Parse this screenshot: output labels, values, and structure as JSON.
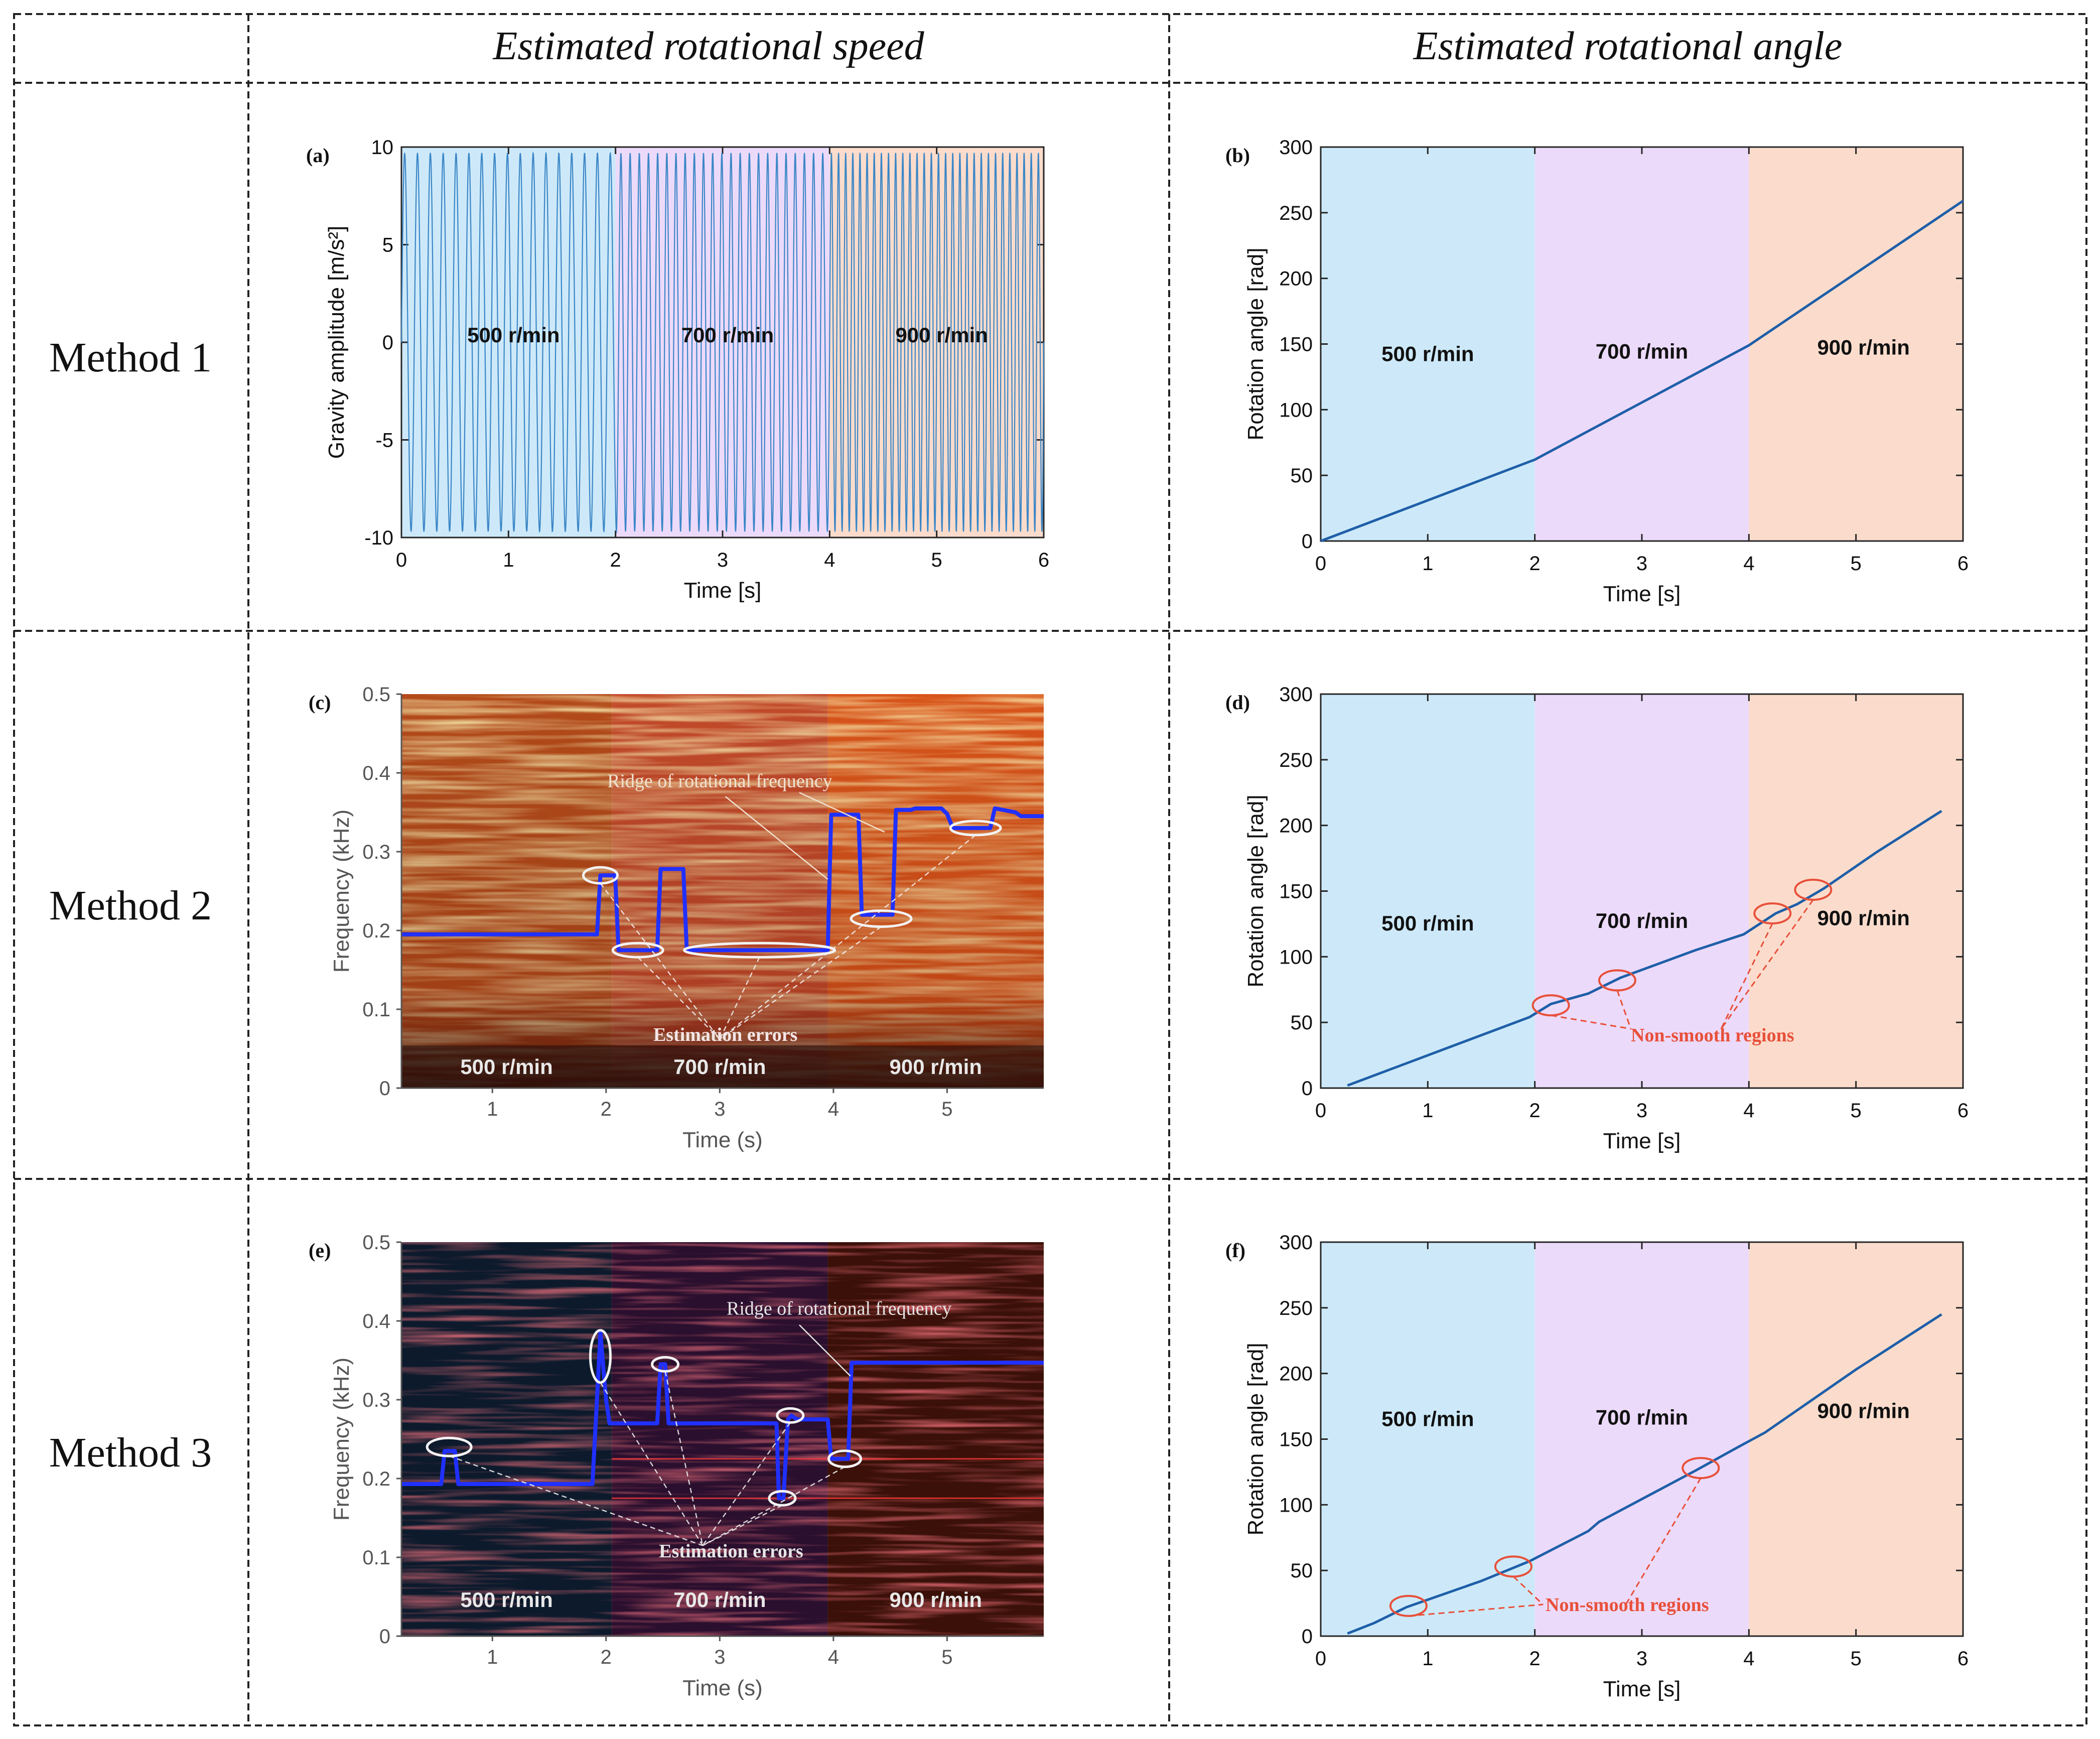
{
  "table": {
    "headers": [
      "",
      "Estimated rotational speed",
      "Estimated rotational angle"
    ],
    "rows": [
      "Method 1",
      "Method 2",
      "Method 3"
    ]
  },
  "colors": {
    "band_500": "#cde9f9",
    "band_700": "#ecdafa",
    "band_900": "#fbdccc",
    "line": "#1f5fa8",
    "ridge": "#2030ff",
    "annotation": "#e8503a",
    "ellipse_white": "#f2f2f2"
  },
  "chart_data": [
    {
      "id": "a",
      "panel_label": "(a)",
      "type": "line",
      "xlabel": "Time [s]",
      "ylabel": "Gravity amplitude [m/s²]",
      "xlim": [
        0,
        6
      ],
      "ylim": [
        -10,
        10
      ],
      "xticks": [
        "0",
        "1",
        "2",
        "3",
        "4",
        "5",
        "6"
      ],
      "yticks": [
        "-10",
        "-5",
        "0",
        "5",
        "10"
      ],
      "bands": [
        {
          "from": 0,
          "to": 2,
          "label": "500 r/min"
        },
        {
          "from": 2,
          "to": 4,
          "label": "700 r/min"
        },
        {
          "from": 4,
          "to": 6,
          "label": "900 r/min"
        }
      ],
      "series": [
        {
          "segments": [
            {
              "t0": 0,
              "t1": 2,
              "freq_hz": 8.33,
              "amplitude": 9.7
            },
            {
              "t0": 2,
              "t1": 4,
              "freq_hz": 11.67,
              "amplitude": 9.7
            },
            {
              "t0": 4,
              "t1": 6,
              "freq_hz": 15.0,
              "amplitude": 9.7
            }
          ]
        }
      ]
    },
    {
      "id": "b",
      "panel_label": "(b)",
      "type": "line",
      "xlabel": "Time [s]",
      "ylabel": "Rotation angle [rad]",
      "xlim": [
        0,
        6
      ],
      "ylim": [
        0,
        300
      ],
      "xticks": [
        "0",
        "1",
        "2",
        "3",
        "4",
        "5",
        "6"
      ],
      "yticks": [
        "0",
        "50",
        "100",
        "150",
        "200",
        "250",
        "300"
      ],
      "bands": [
        {
          "from": 0,
          "to": 2,
          "label": "500 r/min"
        },
        {
          "from": 2,
          "to": 4,
          "label": "700 r/min"
        },
        {
          "from": 4,
          "to": 6,
          "label": "900 r/min"
        }
      ],
      "series": [
        {
          "x": [
            0,
            2,
            4,
            6
          ],
          "y": [
            0,
            62,
            149,
            259
          ]
        }
      ]
    },
    {
      "id": "c",
      "panel_label": "(c)",
      "type": "heatmap",
      "xlabel": "Time (s)",
      "ylabel": "Frequency (kHz)",
      "xlim": [
        0.2,
        5.85
      ],
      "ylim": [
        0,
        0.5
      ],
      "xticks": [
        "1",
        "2",
        "3",
        "4",
        "5"
      ],
      "yticks": [
        "0",
        "0.1",
        "0.2",
        "0.3",
        "0.4",
        "0.5"
      ],
      "bands": [
        {
          "from": 0.2,
          "to": 2.05,
          "label": "500 r/min"
        },
        {
          "from": 2.05,
          "to": 3.95,
          "label": "700 r/min"
        },
        {
          "from": 3.95,
          "to": 5.85,
          "label": "900 r/min"
        }
      ],
      "ridge": {
        "x": [
          0.2,
          1.92,
          1.95,
          2.08,
          2.11,
          2.45,
          2.48,
          2.68,
          2.71,
          3.95,
          3.98,
          4.22,
          4.25,
          4.52,
          4.55,
          4.68,
          4.72,
          4.95,
          5.0,
          5.05,
          5.38,
          5.42,
          5.6,
          5.65,
          5.85
        ],
        "y": [
          0.195,
          0.195,
          0.27,
          0.27,
          0.175,
          0.175,
          0.278,
          0.278,
          0.175,
          0.175,
          0.347,
          0.347,
          0.22,
          0.22,
          0.353,
          0.353,
          0.355,
          0.355,
          0.348,
          0.33,
          0.33,
          0.355,
          0.35,
          0.345,
          0.345
        ]
      },
      "annotations": [
        "Ridge of rotational frequency",
        "Estimation errors"
      ]
    },
    {
      "id": "d",
      "panel_label": "(d)",
      "type": "line",
      "xlabel": "Time [s]",
      "ylabel": "Rotation angle [rad]",
      "xlim": [
        0,
        6
      ],
      "ylim": [
        0,
        300
      ],
      "xticks": [
        "0",
        "1",
        "2",
        "3",
        "4",
        "5",
        "6"
      ],
      "yticks": [
        "0",
        "50",
        "100",
        "150",
        "200",
        "250",
        "300"
      ],
      "bands": [
        {
          "from": 0,
          "to": 2,
          "label": "500 r/min"
        },
        {
          "from": 2,
          "to": 4,
          "label": "700 r/min"
        },
        {
          "from": 4,
          "to": 6,
          "label": "900 r/min"
        }
      ],
      "series": [
        {
          "x": [
            0.25,
            1.95,
            2.15,
            2.5,
            2.8,
            3.5,
            3.95,
            4.25,
            4.45,
            4.7,
            5.2,
            5.8
          ],
          "y": [
            2,
            54,
            64,
            72,
            84,
            105,
            117,
            133,
            140,
            152,
            180,
            211
          ]
        }
      ],
      "highlights": [
        [
          2.15,
          63
        ],
        [
          2.77,
          82
        ],
        [
          4.22,
          133
        ],
        [
          4.6,
          151
        ]
      ],
      "annotation": "Non-smooth regions"
    },
    {
      "id": "e",
      "panel_label": "(e)",
      "type": "heatmap",
      "xlabel": "Time (s)",
      "ylabel": "Frequency (kHz)",
      "xlim": [
        0.2,
        5.85
      ],
      "ylim": [
        0,
        0.5
      ],
      "xticks": [
        "1",
        "2",
        "3",
        "4",
        "5"
      ],
      "yticks": [
        "0",
        "0.1",
        "0.2",
        "0.3",
        "0.4",
        "0.5"
      ],
      "bands": [
        {
          "from": 0.2,
          "to": 2.05,
          "label": "500 r/min"
        },
        {
          "from": 2.05,
          "to": 3.95,
          "label": "700 r/min"
        },
        {
          "from": 3.95,
          "to": 5.85,
          "label": "900 r/min"
        }
      ],
      "ridge": {
        "x": [
          0.2,
          0.55,
          0.58,
          0.67,
          0.7,
          1.88,
          1.92,
          1.95,
          2.0,
          2.03,
          2.05,
          2.45,
          2.48,
          2.52,
          2.55,
          3.5,
          3.52,
          3.56,
          3.6,
          3.63,
          3.68,
          3.95,
          3.98,
          4.13,
          4.16,
          5.85
        ],
        "y": [
          0.193,
          0.193,
          0.235,
          0.235,
          0.193,
          0.193,
          0.3,
          0.385,
          0.3,
          0.27,
          0.27,
          0.27,
          0.345,
          0.345,
          0.27,
          0.27,
          0.175,
          0.175,
          0.275,
          0.28,
          0.275,
          0.275,
          0.225,
          0.225,
          0.347,
          0.347
        ]
      },
      "annotations": [
        "Ridge of rotational frequency",
        "Estimation errors"
      ]
    },
    {
      "id": "f",
      "panel_label": "(f)",
      "type": "line",
      "xlabel": "Time [s]",
      "ylabel": "Rotation angle [rad]",
      "xlim": [
        0,
        6
      ],
      "ylim": [
        0,
        300
      ],
      "xticks": [
        "0",
        "1",
        "2",
        "3",
        "4",
        "5",
        "6"
      ],
      "yticks": [
        "0",
        "50",
        "100",
        "150",
        "200",
        "250",
        "300"
      ],
      "bands": [
        {
          "from": 0,
          "to": 2,
          "label": "500 r/min"
        },
        {
          "from": 2,
          "to": 4,
          "label": "700 r/min"
        },
        {
          "from": 4,
          "to": 6,
          "label": "900 r/min"
        }
      ],
      "series": [
        {
          "x": [
            0.25,
            0.5,
            0.8,
            1.5,
            1.95,
            2.5,
            2.6,
            3.5,
            3.9,
            4.15,
            5.0,
            5.8
          ],
          "y": [
            2,
            10,
            22,
            42,
            57,
            80,
            87,
            126,
            144,
            155,
            203,
            245
          ]
        }
      ],
      "highlights": [
        [
          0.82,
          23
        ],
        [
          1.8,
          53
        ],
        [
          3.55,
          128
        ]
      ],
      "annotation": "Non-smooth regions"
    }
  ]
}
